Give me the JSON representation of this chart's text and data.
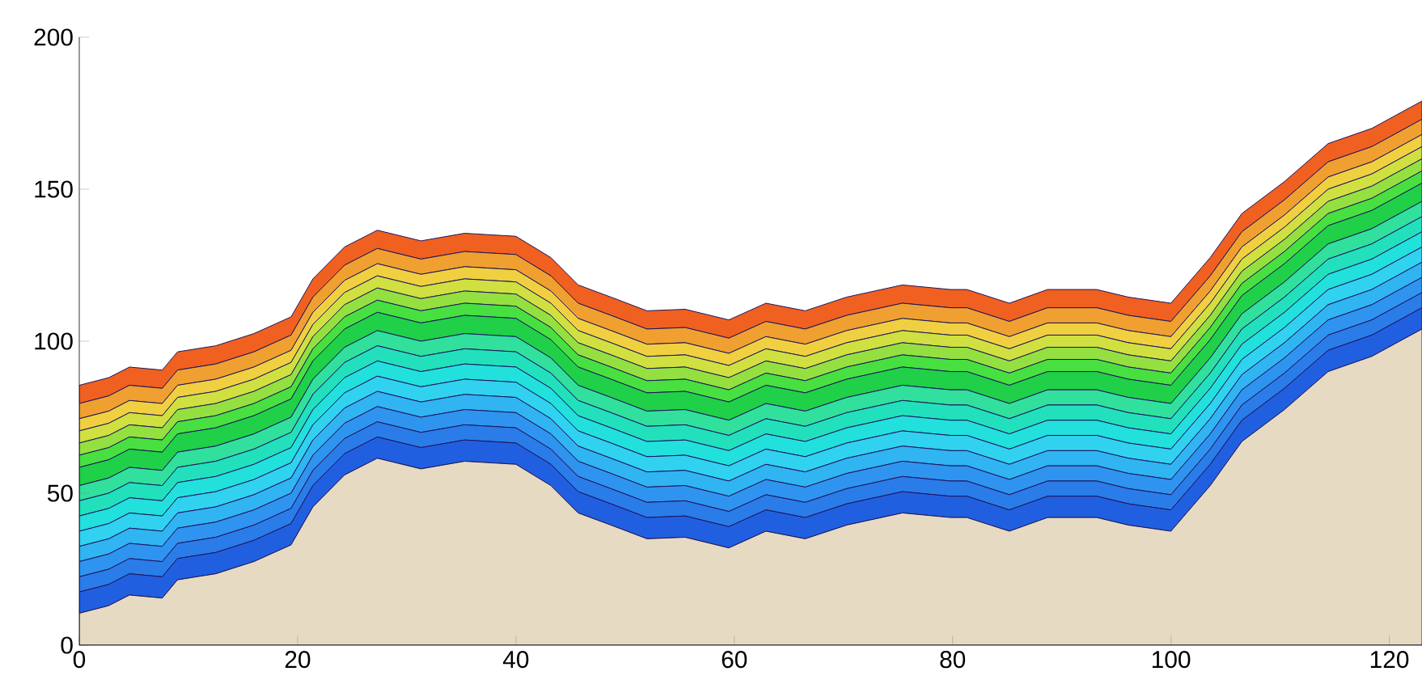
{
  "chart_data": {
    "type": "area",
    "stacked": true,
    "x": [
      0,
      2.7,
      4.6,
      7.6,
      9,
      12.5,
      16,
      19.4,
      21.4,
      24.3,
      27.3,
      31.3,
      35.3,
      40,
      43.2,
      45.7,
      48.7,
      52,
      55.5,
      59.5,
      62.9,
      66.5,
      70.3,
      75.4,
      79.8,
      81.3,
      85.2,
      88.7,
      93.2,
      96.1,
      100,
      103.6,
      106.5,
      110.4,
      114.4,
      118.4,
      123
    ],
    "series": [
      {
        "color": "#e6dac3",
        "values": [
          10.5,
          13,
          16.5,
          15.5,
          21.5,
          23.5,
          27.5,
          33,
          45.5,
          56,
          61.5,
          58,
          60.5,
          59.5,
          52.5,
          43.5,
          39.5,
          35,
          35.5,
          32,
          37.5,
          35,
          39.5,
          43.5,
          42,
          42,
          37.5,
          42,
          42,
          39.5,
          37.5,
          52.5,
          67,
          77.5,
          90,
          95,
          104
        ]
      },
      {
        "color": "#2060e0",
        "values": [
          7,
          7,
          7,
          7,
          7,
          7,
          7,
          7,
          7,
          7,
          7,
          7,
          7,
          7,
          7,
          7,
          7,
          7,
          7,
          7,
          7,
          7,
          7,
          7,
          7,
          7,
          7,
          7,
          7,
          7,
          7,
          7,
          7,
          7,
          7,
          7,
          7
        ]
      },
      {
        "color": "#2a7ce8",
        "values": [
          5,
          5,
          5,
          5,
          5,
          5,
          5,
          5,
          5,
          5,
          5,
          5,
          5,
          5,
          5,
          5,
          5,
          5,
          5,
          5,
          5,
          5,
          5,
          5,
          5,
          5,
          5,
          5,
          5,
          5,
          5,
          5,
          5,
          5,
          5,
          5,
          5
        ]
      },
      {
        "color": "#2f94f0",
        "values": [
          5,
          5,
          5,
          5,
          5,
          5,
          5,
          5,
          5,
          5,
          5,
          5,
          5,
          5,
          5,
          5,
          5,
          5,
          5,
          5,
          5,
          5,
          5,
          5,
          5,
          5,
          5,
          5,
          5,
          5,
          5,
          5,
          5,
          5,
          5,
          5,
          5
        ]
      },
      {
        "color": "#30b4f2",
        "values": [
          5,
          5,
          5,
          5,
          5,
          5,
          5,
          5,
          5,
          5,
          5,
          5,
          5,
          5,
          5,
          5,
          5,
          5,
          5,
          5,
          5,
          5,
          5,
          5,
          5,
          5,
          5,
          5,
          5,
          5,
          5,
          5,
          5,
          5,
          5,
          5,
          5
        ]
      },
      {
        "color": "#30d2f0",
        "values": [
          5,
          5,
          5,
          5,
          5,
          5,
          5,
          5,
          5,
          5,
          5,
          5,
          5,
          5,
          5,
          5,
          5,
          5,
          5,
          5,
          5,
          5,
          5,
          5,
          5,
          5,
          5,
          5,
          5,
          5,
          5,
          5,
          5,
          5,
          5,
          5,
          5
        ]
      },
      {
        "color": "#22e0dc",
        "values": [
          5,
          5,
          5,
          5,
          5,
          5,
          5,
          5,
          5,
          5,
          5,
          5,
          5,
          5,
          5,
          5,
          5,
          5,
          5,
          5,
          5,
          5,
          5,
          5,
          5,
          5,
          5,
          5,
          5,
          5,
          5,
          5,
          5,
          5,
          5,
          5,
          5
        ]
      },
      {
        "color": "#22e0bc",
        "values": [
          5,
          5,
          5,
          5,
          5,
          5,
          5,
          5,
          5,
          5,
          5,
          5,
          5,
          5,
          5,
          5,
          5,
          5,
          5,
          5,
          5,
          5,
          5,
          5,
          5,
          5,
          5,
          5,
          5,
          5,
          5,
          5,
          5,
          5,
          5,
          5,
          5
        ]
      },
      {
        "color": "#30e09c",
        "values": [
          5,
          5,
          5,
          5,
          5,
          5,
          5,
          5,
          5,
          5,
          5,
          5,
          5,
          5,
          5,
          5,
          5,
          5,
          5,
          5,
          5,
          5,
          5,
          5,
          5,
          5,
          5,
          5,
          5,
          5,
          5,
          5,
          5,
          5,
          5,
          5,
          5
        ]
      },
      {
        "color": "#20d048",
        "values": [
          6,
          6,
          6,
          6,
          6,
          6,
          6,
          6,
          6,
          6,
          6,
          6,
          6,
          6,
          6,
          6,
          6,
          6,
          6,
          6,
          6,
          6,
          6,
          6,
          6,
          6,
          6,
          6,
          6,
          6,
          6,
          6,
          6,
          6,
          6,
          6,
          6
        ]
      },
      {
        "color": "#48e040",
        "values": [
          4,
          4,
          4,
          4,
          4,
          4,
          4,
          4,
          4,
          4,
          4,
          4,
          4,
          4,
          4,
          4,
          4,
          4,
          4,
          4,
          4,
          4,
          4,
          4,
          4,
          4,
          4,
          4,
          4,
          4,
          4,
          4,
          4,
          4,
          4,
          4,
          4
        ]
      },
      {
        "color": "#94e040",
        "values": [
          4,
          4,
          4,
          4,
          4,
          4,
          4,
          4,
          4,
          4,
          4,
          4,
          4,
          4,
          4,
          4,
          4,
          4,
          4,
          4,
          4,
          4,
          4,
          4,
          4,
          4,
          4,
          4,
          4,
          4,
          4,
          4,
          4,
          4,
          4,
          4,
          4
        ]
      },
      {
        "color": "#d0e040",
        "values": [
          4,
          4,
          4,
          4,
          4,
          4,
          4,
          4,
          4,
          4,
          4,
          4,
          4,
          4,
          4,
          4,
          4,
          4,
          4,
          4,
          4,
          4,
          4,
          4,
          4,
          4,
          4,
          4,
          4,
          4,
          4,
          4,
          4,
          4,
          4,
          4,
          4
        ]
      },
      {
        "color": "#f0d040",
        "values": [
          4,
          4,
          4,
          4,
          4,
          4,
          4,
          4,
          4,
          4,
          4,
          4,
          4,
          4,
          4,
          4,
          4,
          4,
          4,
          4,
          4,
          4,
          4,
          4,
          4,
          4,
          4,
          4,
          4,
          4,
          4,
          4,
          4,
          4,
          4,
          4,
          4
        ]
      },
      {
        "color": "#f0a030",
        "values": [
          5,
          5,
          5,
          5,
          5,
          5,
          5,
          5,
          5,
          5,
          5,
          5,
          5,
          5,
          5,
          5,
          5,
          5,
          5,
          5,
          5,
          5,
          5,
          5,
          5,
          5,
          5,
          5,
          5,
          5,
          5,
          5,
          5,
          5,
          5,
          5,
          5
        ]
      },
      {
        "color": "#f06020",
        "values": [
          6,
          6,
          6,
          6,
          6,
          6,
          6,
          6,
          6,
          6,
          6,
          6,
          6,
          6,
          6,
          6,
          6,
          6,
          6,
          6,
          6,
          6,
          6,
          6,
          6,
          6,
          6,
          6,
          6,
          6,
          6,
          6,
          6,
          6,
          6,
          6,
          6
        ]
      }
    ],
    "xlim": [
      0,
      123
    ],
    "ylim": [
      0,
      200
    ],
    "xticks": [
      0,
      20,
      40,
      60,
      80,
      100,
      120
    ],
    "yticks": [
      0,
      50,
      100,
      150,
      200
    ]
  }
}
